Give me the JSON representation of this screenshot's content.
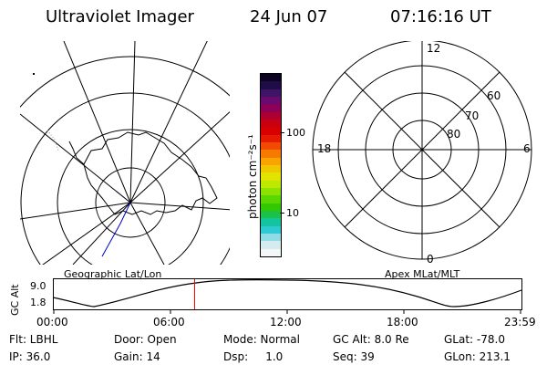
{
  "header": {
    "title": "Ultraviolet Imager",
    "date": "24 Jun 07",
    "time": "07:16:16 UT"
  },
  "colorbar": {
    "unit": "photon cm⁻²s⁻¹",
    "ticks": [
      "100",
      "10"
    ],
    "colors": [
      "#0b0420",
      "#200d47",
      "#3d1466",
      "#690a6e",
      "#8d0057",
      "#ad0030",
      "#c80012",
      "#d80000",
      "#e61a00",
      "#f24a00",
      "#f77a00",
      "#f9a400",
      "#f0c800",
      "#e1e300",
      "#bde800",
      "#8de200",
      "#5ad600",
      "#33c800",
      "#1bc247",
      "#14c49e",
      "#2ec9d3",
      "#8fdbe6",
      "#d4ecf0",
      "#f4f7f8"
    ]
  },
  "left_map": {
    "label": "Geographic Lat/Lon"
  },
  "right_map": {
    "label": "Apex MLat/MLT",
    "hour_labels": {
      "top": "12",
      "left": "18",
      "right": "6",
      "bottom": "0"
    },
    "lat_labels": [
      "60",
      "70",
      "80"
    ]
  },
  "altitude_plot": {
    "ylabel": "GC Alt",
    "yticks": [
      "9.0",
      "1.8"
    ],
    "xticks": [
      "00:00",
      "06:00",
      "12:00",
      "18:00",
      "23:59"
    ]
  },
  "footer": {
    "col1": [
      "Flt: LBHL",
      "IP: 36.0"
    ],
    "col2": [
      "Door: Open",
      "Gain: 14"
    ],
    "col3": [
      "Mode: Normal",
      "Dsp:     1.0"
    ],
    "col4": [
      "GC Alt: 8.0 Re",
      "Seq: 39"
    ],
    "col5": [
      "GLat: -78.0",
      "GLon: 213.1"
    ]
  }
}
